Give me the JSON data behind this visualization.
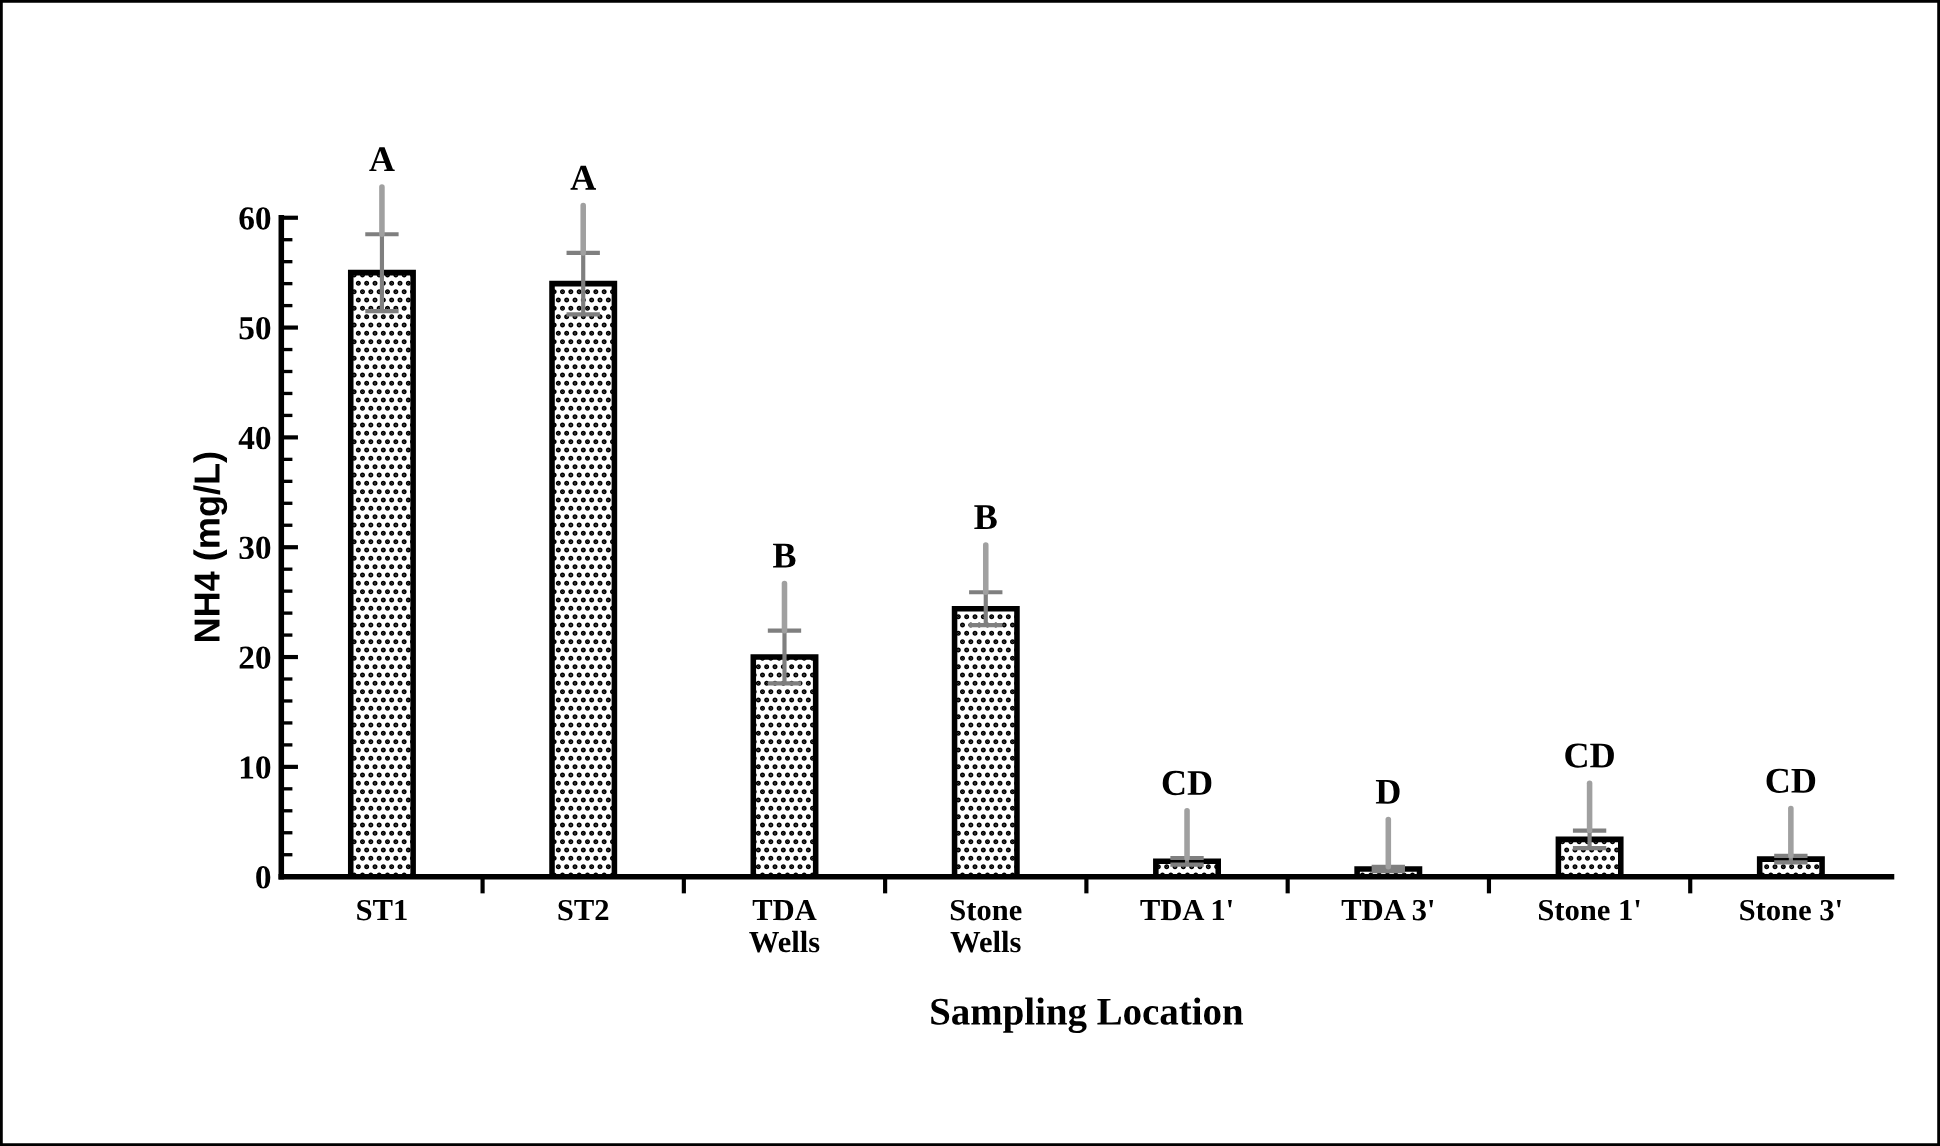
{
  "chart_data": {
    "type": "bar",
    "xlabel": "Sampling Location",
    "ylabel": "NH4 (mg/L)",
    "categories": [
      "ST1",
      "ST2",
      "TDA\nWells",
      "Stone\nWells",
      "TDA 1'",
      "TDA 3'",
      "Stone 1'",
      "Stone 3'"
    ],
    "values": [
      55,
      54,
      20,
      24.4,
      1.4,
      0.7,
      3.4,
      1.6
    ],
    "errors": [
      3.5,
      2.8,
      2.4,
      1.5,
      0.3,
      0.2,
      0.8,
      0.3
    ],
    "color": "#000000",
    "ylim": [
      0,
      60
    ],
    "yticks": [
      0,
      10,
      20,
      30,
      40,
      50,
      60
    ],
    "grid": false,
    "legend": false,
    "annotations": [
      {
        "text": "A",
        "x": "ST1",
        "y": 58.5
      },
      {
        "text": "A",
        "x": "ST2",
        "y": 56.8
      },
      {
        "text": "B",
        "x": "TDA\nWells",
        "y": 22.4
      },
      {
        "text": "B",
        "x": "Stone\nWells",
        "y": 25.9
      },
      {
        "text": "CD",
        "x": "TDA 1'",
        "y": 1.7
      },
      {
        "text": "D",
        "x": "TDA 3'",
        "y": 0.9
      },
      {
        "text": "CD",
        "x": "Stone 1'",
        "y": 4.2
      },
      {
        "text": "CD",
        "x": "Stone 3'",
        "y": 1.9
      }
    ]
  }
}
